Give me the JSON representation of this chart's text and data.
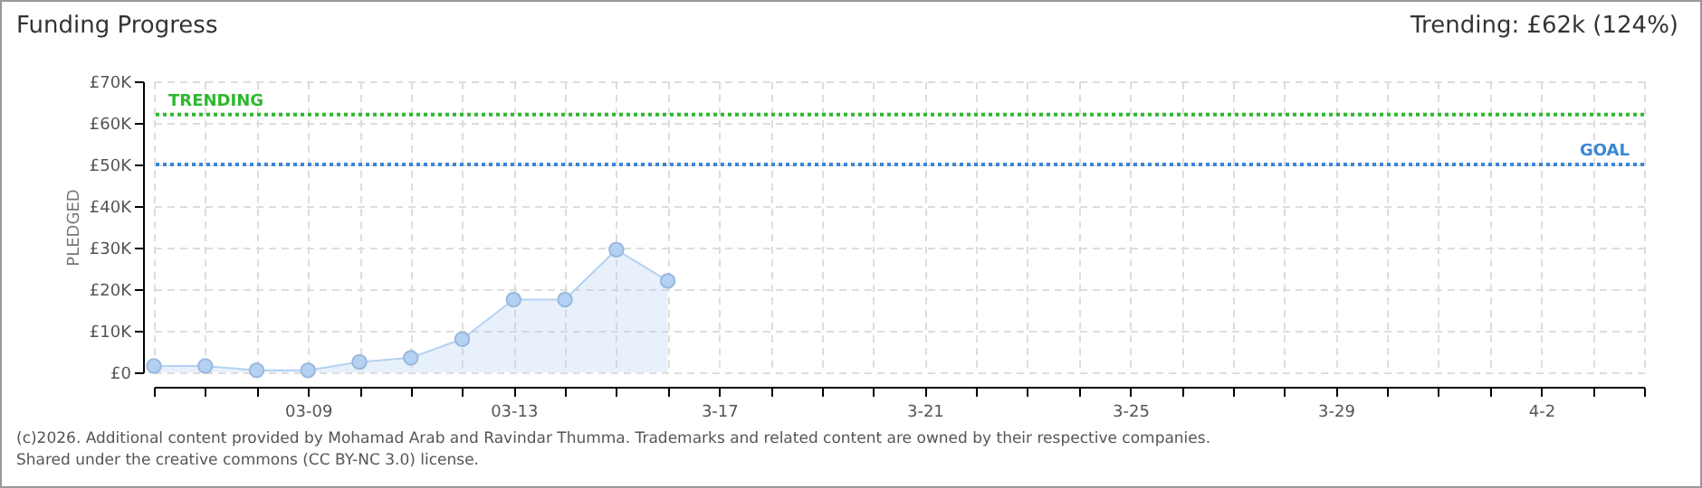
{
  "chart_data": {
    "type": "area",
    "title": "Funding Progress",
    "ylabel": "PLEDGED",
    "annotations": [
      "Trending: £62k (124%)",
      "(c)2026. Additional content provided by Mohamad Arab and Ravindar Thumma. Trademarks and related content are owned by their respective companies.",
      "Shared under the creative commons (CC BY-NC 3.0) license."
    ],
    "x": [
      "--03-06",
      "--03-07",
      "--03-08",
      "--03-09",
      "--03-10",
      "--03-11",
      "--03-12",
      "--03-13",
      "--03-14",
      "--03-15",
      "--03-16"
    ],
    "series": [
      {
        "color": "#b3d1f2",
        "values": [
          1.5,
          1.5,
          0.5,
          0.5,
          2.5,
          3.5,
          8,
          17.5,
          17.5,
          29.5,
          22
        ]
      }
    ],
    "xlim": [
      "--03-06",
      "--04-04"
    ],
    "xticks": [
      {
        "value": "--03-06",
        "label": null
      },
      {
        "value": "--03-07",
        "label": null
      },
      {
        "value": "--03-08",
        "label": null
      },
      {
        "value": "--03-09",
        "label": "03-09"
      },
      {
        "value": "--03-10",
        "label": null
      },
      {
        "value": "--03-11",
        "label": null
      },
      {
        "value": "--03-12",
        "label": null
      },
      {
        "value": "--03-13",
        "label": "03-13"
      },
      {
        "value": "--03-14",
        "label": null
      },
      {
        "value": "--03-15",
        "label": null
      },
      {
        "value": "--03-16",
        "label": null
      },
      {
        "value": "--03-17",
        "label": "3-17"
      },
      {
        "value": "--03-18",
        "label": null
      },
      {
        "value": "--03-19",
        "label": null
      },
      {
        "value": "--03-20",
        "label": null
      },
      {
        "value": "--03-21",
        "label": "3-21"
      },
      {
        "value": "--03-22",
        "label": null
      },
      {
        "value": "--03-23",
        "label": null
      },
      {
        "value": "--03-24",
        "label": null
      },
      {
        "value": "--03-25",
        "label": "3-25"
      },
      {
        "value": "--03-26",
        "label": null
      },
      {
        "value": "--03-27",
        "label": null
      },
      {
        "value": "--03-28",
        "label": null
      },
      {
        "value": "--03-29",
        "label": "3-29"
      },
      {
        "value": "--03-30",
        "label": null
      },
      {
        "value": "--03-31",
        "label": null
      },
      {
        "value": "--04-01",
        "label": null
      },
      {
        "value": "--04-02",
        "label": "4-2"
      },
      {
        "value": "--04-03",
        "label": null
      },
      {
        "value": "--04-04",
        "label": null
      }
    ],
    "ylim": [
      0,
      70
    ],
    "yticks": [
      {
        "value": 0,
        "label": "£0"
      },
      {
        "value": 10,
        "label": "£10K"
      },
      {
        "value": 20,
        "label": "£20K"
      },
      {
        "value": 30,
        "label": "£30K"
      },
      {
        "value": 40,
        "label": "£40K"
      },
      {
        "value": 50,
        "label": "£50K"
      },
      {
        "value": 60,
        "label": "£60K"
      },
      {
        "value": 70,
        "label": "£70K"
      }
    ],
    "ref_lines": [
      {
        "axis": "y",
        "value": 62,
        "label": "TRENDING",
        "color": "#2db82d",
        "line_style": "dotted"
      },
      {
        "axis": "y",
        "value": 50,
        "label": "GOAL",
        "color": "#3a87d6",
        "line_style": "dotted"
      }
    ],
    "grid": true,
    "marker": "circle"
  }
}
